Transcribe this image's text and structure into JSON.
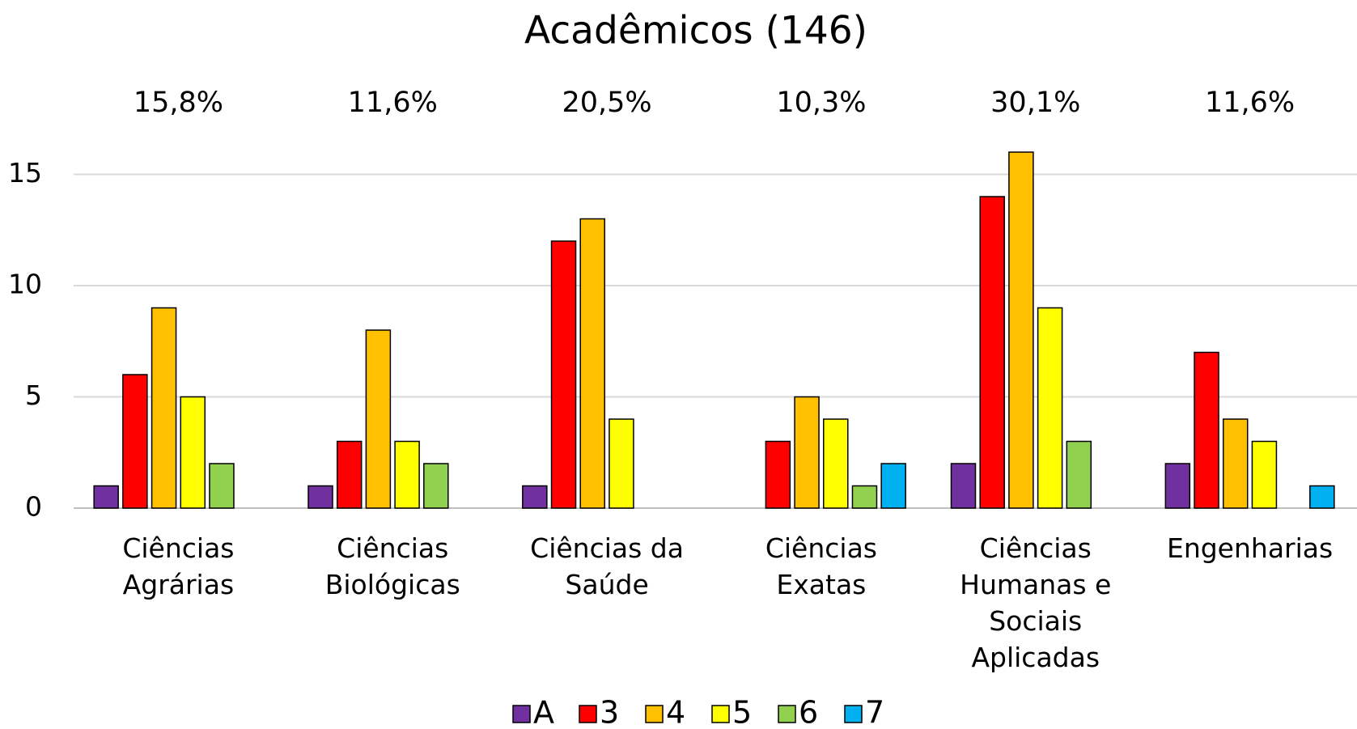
{
  "chart_data": {
    "type": "bar",
    "title": "Acadêmicos (146)",
    "categories": [
      "Ciências Agrárias",
      "Ciências Biológicas",
      "Ciências da Saúde",
      "Ciências Exatas",
      "Ciências Humanas e Sociais Aplicadas",
      "Engenharias"
    ],
    "annotations": [
      {
        "value": 15.8,
        "label": "15,8%"
      },
      {
        "value": 11.6,
        "label": "11,6%"
      },
      {
        "value": 20.5,
        "label": "20,5%"
      },
      {
        "value": 10.3,
        "label": "10,3%"
      },
      {
        "value": 30.1,
        "label": "30,1%"
      },
      {
        "value": 11.6,
        "label": "11,6%"
      }
    ],
    "series": [
      {
        "name": "A",
        "color": "#7030a0",
        "values": [
          1,
          1,
          1,
          0,
          2,
          2
        ]
      },
      {
        "name": "3",
        "color": "#ff0000",
        "values": [
          6,
          3,
          12,
          3,
          14,
          7
        ]
      },
      {
        "name": "4",
        "color": "#ffc000",
        "values": [
          9,
          8,
          13,
          5,
          16,
          4
        ]
      },
      {
        "name": "5",
        "color": "#ffff00",
        "values": [
          5,
          3,
          4,
          4,
          9,
          3
        ]
      },
      {
        "name": "6",
        "color": "#92d050",
        "values": [
          2,
          2,
          0,
          1,
          3,
          0
        ]
      },
      {
        "name": "7",
        "color": "#00b0f0",
        "values": [
          0,
          0,
          0,
          2,
          0,
          1
        ]
      }
    ],
    "ylim": [
      0,
      17
    ],
    "yticks": [
      0,
      5,
      10,
      15
    ],
    "grid": true,
    "legend": "bottom"
  }
}
